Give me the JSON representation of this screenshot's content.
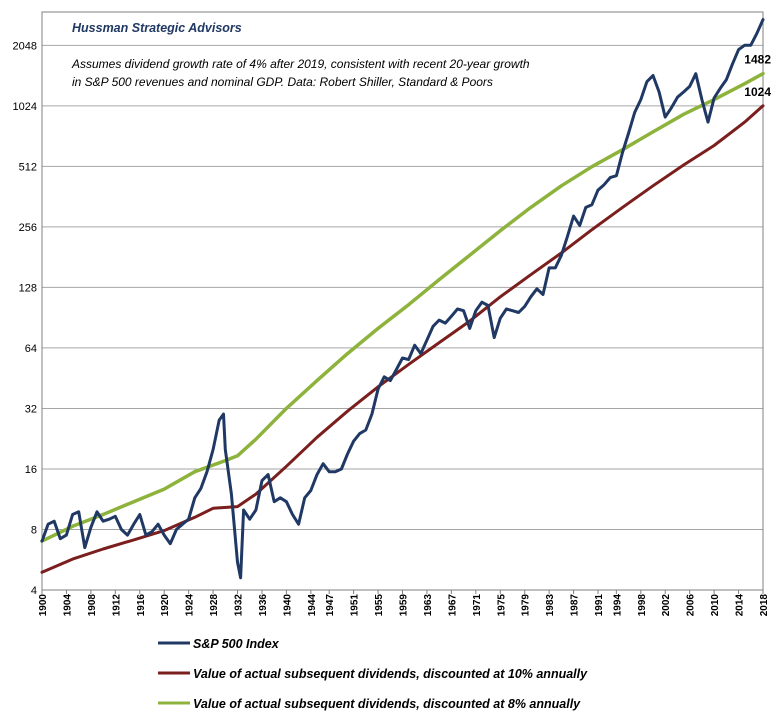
{
  "chart_data": {
    "type": "line",
    "title": "Hussman Strategic Advisors",
    "notes": [
      "Assumes dividend growth rate of 4% after 2019,  consistent with recent 20-year growth",
      "in S&P 500 revenues and nominal GDP. Data: Robert Shiller, Standard & Poors"
    ],
    "y_scale": "log2",
    "ylim": [
      4,
      3000
    ],
    "yticks": [
      4,
      8,
      16,
      32,
      64,
      128,
      256,
      512,
      1024,
      2048
    ],
    "xlim": [
      1900,
      2018
    ],
    "xticks": [
      1900,
      1904,
      1908,
      1912,
      1916,
      1920,
      1924,
      1928,
      1932,
      1936,
      1940,
      1944,
      1947,
      1951,
      1955,
      1959,
      1963,
      1967,
      1971,
      1975,
      1979,
      1983,
      1987,
      1991,
      1994,
      1998,
      2002,
      2006,
      2010,
      2014,
      2018
    ],
    "grid": true,
    "legend_position": "bottom",
    "end_labels": [
      {
        "series": 2,
        "text": "1482"
      },
      {
        "series": 1,
        "text": "1024"
      }
    ],
    "series": [
      {
        "name": "S&P 500 Index",
        "color": "#1f3864",
        "x": [
          1900,
          1901,
          1902,
          1903,
          1904,
          1905,
          1906,
          1907,
          1908,
          1909,
          1910,
          1911,
          1912,
          1913,
          1914,
          1915,
          1916,
          1917,
          1918,
          1919,
          1920,
          1921,
          1922,
          1923,
          1924,
          1925,
          1926,
          1927,
          1928,
          1929,
          1929.7,
          1930,
          1931,
          1932,
          1932.5,
          1933,
          1934,
          1935,
          1936,
          1937,
          1938,
          1939,
          1940,
          1941,
          1942,
          1943,
          1944,
          1945,
          1946,
          1947,
          1948,
          1949,
          1950,
          1951,
          1952,
          1953,
          1954,
          1955,
          1956,
          1957,
          1958,
          1959,
          1960,
          1961,
          1962,
          1963,
          1964,
          1965,
          1966,
          1967,
          1968,
          1969,
          1970,
          1971,
          1972,
          1973,
          1974,
          1975,
          1976,
          1977,
          1978,
          1979,
          1980,
          1981,
          1982,
          1983,
          1984,
          1985,
          1986,
          1987,
          1988,
          1989,
          1990,
          1991,
          1992,
          1993,
          1994,
          1995,
          1996,
          1997,
          1998,
          1999,
          2000,
          2001,
          2002,
          2003,
          2004,
          2005,
          2006,
          2007,
          2008,
          2009,
          2010,
          2011,
          2012,
          2013,
          2014,
          2015,
          2016,
          2017,
          2018
        ],
        "values": [
          7.0,
          8.5,
          8.8,
          7.2,
          7.5,
          9.5,
          9.8,
          6.5,
          8.2,
          9.8,
          8.8,
          9.0,
          9.3,
          8.0,
          7.5,
          8.5,
          9.5,
          7.5,
          7.8,
          8.5,
          7.5,
          6.8,
          8.0,
          8.5,
          9.0,
          11.5,
          12.8,
          15.5,
          20.0,
          28.0,
          30.0,
          20.0,
          12.0,
          5.5,
          4.6,
          10.0,
          9.0,
          10.0,
          14.0,
          15.0,
          11.0,
          11.5,
          11.0,
          9.5,
          8.5,
          11.5,
          12.5,
          15.0,
          17.0,
          15.5,
          15.5,
          16.0,
          19.0,
          22.0,
          24.0,
          25.0,
          30.0,
          40.0,
          46.0,
          44.0,
          50.0,
          57.0,
          56.0,
          66.0,
          60.0,
          70.0,
          82.0,
          88.0,
          85.0,
          92.0,
          100.0,
          98.0,
          80.0,
          98.0,
          108.0,
          104.0,
          72.0,
          90.0,
          100.0,
          98.0,
          96.0,
          103.0,
          115.0,
          126.0,
          118.0,
          160.0,
          160.0,
          185.0,
          230.0,
          290.0,
          260.0,
          320.0,
          330.0,
          390.0,
          415.0,
          450.0,
          460.0,
          600.0,
          750.0,
          950.0,
          1100.0,
          1350.0,
          1450.0,
          1200.0,
          900.0,
          1000.0,
          1130.0,
          1200.0,
          1280.0,
          1480.0,
          1100.0,
          850.0,
          1120.0,
          1250.0,
          1380.0,
          1650.0,
          1950.0,
          2050.0,
          2050.0,
          2350.0,
          2750.0
        ]
      },
      {
        "name": "Value of actual subsequent dividends, discounted at 10% annually",
        "color": "#7b1e1e",
        "x": [
          1900,
          1905,
          1910,
          1915,
          1920,
          1925,
          1928,
          1932,
          1935,
          1940,
          1945,
          1950,
          1955,
          1960,
          1965,
          1970,
          1975,
          1980,
          1985,
          1990,
          1995,
          2000,
          2005,
          2010,
          2015,
          2018
        ],
        "values": [
          4.9,
          5.7,
          6.4,
          7.1,
          7.9,
          9.2,
          10.2,
          10.4,
          12.0,
          16.5,
          23.0,
          31.0,
          41.0,
          53.0,
          68.0,
          87.0,
          115.0,
          148.0,
          190.0,
          248.0,
          320.0,
          410.0,
          520.0,
          650.0,
          850.0,
          1024.0
        ]
      },
      {
        "name": "Value of actual subsequent dividends, discounted at 8% annually",
        "color": "#8db33c",
        "x": [
          1900,
          1905,
          1910,
          1915,
          1920,
          1925,
          1930,
          1932,
          1935,
          1940,
          1945,
          1950,
          1955,
          1960,
          1965,
          1970,
          1975,
          1980,
          1985,
          1990,
          1995,
          2000,
          2005,
          2010,
          2015,
          2018
        ],
        "values": [
          7.0,
          8.3,
          9.5,
          11.0,
          12.7,
          15.5,
          17.6,
          18.6,
          22.5,
          32.0,
          44.0,
          60.0,
          80.0,
          105.0,
          140.0,
          185.0,
          245.0,
          320.0,
          410.0,
          510.0,
          620.0,
          760.0,
          930.0,
          1100.0,
          1320.0,
          1482.0
        ]
      }
    ]
  }
}
